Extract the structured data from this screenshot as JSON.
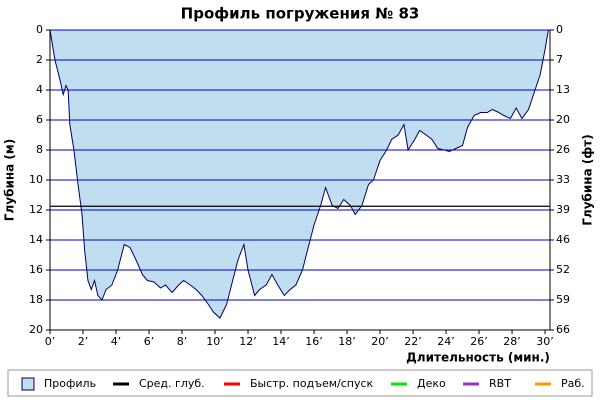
{
  "chart_data": {
    "type": "area",
    "title": "Профиль погружения № 83",
    "x_label": "Длительность (мин.)",
    "y_label": "Глубина (м)",
    "y2_label": "Глубина (фт)",
    "invert_y": true,
    "grid": true,
    "grid_color": "#0000cc",
    "xlim": [
      0,
      30.3
    ],
    "xticks": [
      {
        "value": 0,
        "label": "0’"
      },
      {
        "value": 2,
        "label": "2’"
      },
      {
        "value": 4,
        "label": "4’"
      },
      {
        "value": 6,
        "label": "6’"
      },
      {
        "value": 8,
        "label": "8’"
      },
      {
        "value": 10,
        "label": "10’"
      },
      {
        "value": 12,
        "label": "12’"
      },
      {
        "value": 14,
        "label": "14’"
      },
      {
        "value": 16,
        "label": "16’"
      },
      {
        "value": 18,
        "label": "18’"
      },
      {
        "value": 20,
        "label": "20’"
      },
      {
        "value": 22,
        "label": "22’"
      },
      {
        "value": 24,
        "label": "24’"
      },
      {
        "value": 26,
        "label": "26’"
      },
      {
        "value": 28,
        "label": "28’"
      },
      {
        "value": 30,
        "label": "30’"
      }
    ],
    "ylim": [
      0,
      20
    ],
    "yticks": [
      0,
      2,
      4,
      6,
      8,
      10,
      12,
      14,
      16,
      18,
      20
    ],
    "y2lim": [
      0,
      65.62
    ],
    "y2ticks": [
      {
        "value": 0,
        "label": "0"
      },
      {
        "value": 6.56,
        "label": "7"
      },
      {
        "value": 13.12,
        "label": "13"
      },
      {
        "value": 19.69,
        "label": "20"
      },
      {
        "value": 26.25,
        "label": "26"
      },
      {
        "value": 32.81,
        "label": "33"
      },
      {
        "value": 39.37,
        "label": "39"
      },
      {
        "value": 45.93,
        "label": "46"
      },
      {
        "value": 52.49,
        "label": "52"
      },
      {
        "value": 59.06,
        "label": "59"
      },
      {
        "value": 65.62,
        "label": "66"
      }
    ],
    "x": [
      0,
      0.3,
      0.6,
      0.8,
      0.97,
      1.1,
      1.2,
      1.45,
      1.7,
      1.94,
      2.1,
      2.3,
      2.5,
      2.7,
      2.9,
      3.15,
      3.4,
      3.75,
      4.1,
      4.5,
      4.85,
      5.2,
      5.6,
      5.9,
      6.3,
      6.7,
      7.0,
      7.4,
      7.8,
      8.1,
      8.5,
      8.85,
      9.2,
      9.6,
      9.9,
      10.3,
      10.7,
      11.0,
      11.4,
      11.75,
      12.0,
      12.4,
      12.7,
      13.1,
      13.45,
      13.8,
      14.2,
      14.55,
      14.9,
      15.3,
      15.6,
      16.0,
      16.4,
      16.7,
      17.1,
      17.45,
      17.8,
      18.2,
      18.5,
      18.9,
      19.3,
      19.6,
      20.0,
      20.4,
      20.7,
      21.1,
      21.45,
      21.7,
      22.1,
      22.4,
      22.8,
      23.15,
      23.5,
      23.9,
      24.2,
      24.6,
      25.0,
      25.3,
      25.7,
      26.1,
      26.5,
      26.8,
      27.2,
      27.5,
      27.9,
      28.25,
      28.6,
      29.0,
      29.3,
      29.7,
      30.0,
      30.2
    ],
    "series": [
      {
        "name": "Профиль",
        "color": "#c0deef",
        "line_color": "#000066",
        "values": [
          0,
          2,
          3.3,
          4.3,
          3.7,
          4,
          6.3,
          8,
          10.3,
          12.3,
          14.7,
          16.7,
          17.3,
          16.7,
          17.7,
          18,
          17.3,
          17,
          16,
          14.3,
          14.5,
          15.3,
          16.3,
          16.7,
          16.8,
          17.2,
          17,
          17.5,
          17,
          16.7,
          17,
          17.3,
          17.7,
          18.3,
          18.8,
          19.2,
          18.3,
          17,
          15.3,
          14.3,
          16,
          17.7,
          17.3,
          17,
          16.3,
          17,
          17.7,
          17.3,
          17,
          16,
          14.7,
          13,
          11.7,
          10.5,
          11.7,
          11.9,
          11.3,
          11.7,
          12.3,
          11.7,
          10.3,
          10,
          8.7,
          8,
          7.3,
          7,
          6.3,
          8,
          7.3,
          6.7,
          7,
          7.3,
          7.9,
          8,
          8.1,
          7.9,
          7.7,
          6.5,
          5.7,
          5.5,
          5.5,
          5.3,
          5.5,
          5.7,
          5.9,
          5.2,
          5.9,
          5.3,
          4.3,
          3,
          1.3,
          0
        ]
      },
      {
        "name": "Сред. глуб.",
        "color": "#000000",
        "value": 11.75
      },
      {
        "name": "Быстр. подъем/спуск",
        "color": "#ff0000"
      },
      {
        "name": "Деко",
        "color": "#00ee00"
      },
      {
        "name": "RBT",
        "color": "#9933cc"
      },
      {
        "name": "Раб.",
        "color": "#ff9900"
      }
    ]
  }
}
